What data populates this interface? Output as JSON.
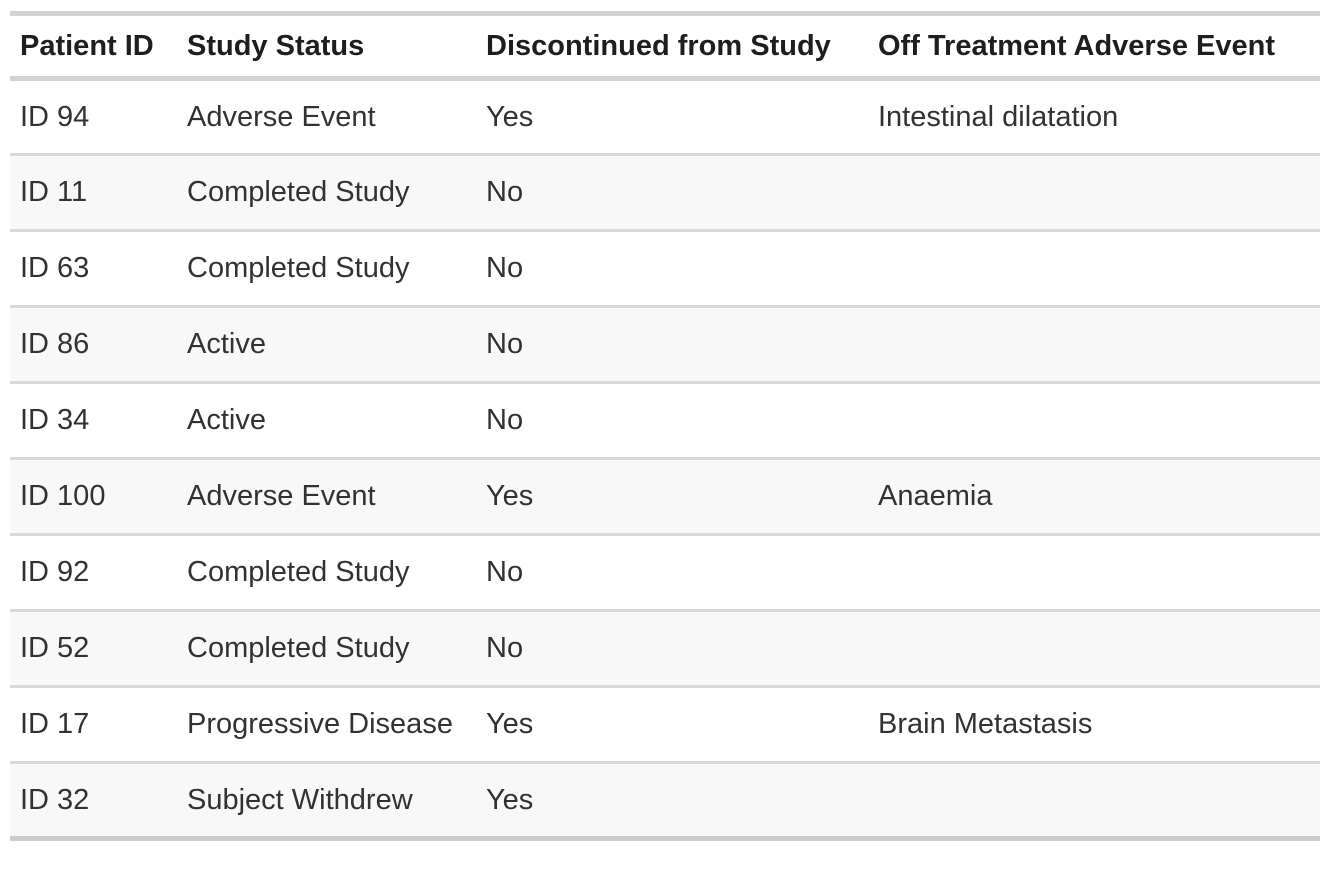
{
  "table": {
    "columns": [
      {
        "key": "patient_id",
        "label": "Patient ID"
      },
      {
        "key": "study_status",
        "label": "Study Status"
      },
      {
        "key": "discontinued",
        "label": "Discontinued from Study"
      },
      {
        "key": "adverse_event",
        "label": "Off Treatment Adverse Event"
      }
    ],
    "rows": [
      {
        "patient_id": "ID 94",
        "study_status": "Adverse Event",
        "discontinued": "Yes",
        "adverse_event": "Intestinal dilatation"
      },
      {
        "patient_id": "ID 11",
        "study_status": "Completed Study",
        "discontinued": "No",
        "adverse_event": ""
      },
      {
        "patient_id": "ID 63",
        "study_status": "Completed Study",
        "discontinued": "No",
        "adverse_event": ""
      },
      {
        "patient_id": "ID 86",
        "study_status": "Active",
        "discontinued": "No",
        "adverse_event": ""
      },
      {
        "patient_id": "ID 34",
        "study_status": "Active",
        "discontinued": "No",
        "adverse_event": ""
      },
      {
        "patient_id": "ID 100",
        "study_status": "Adverse Event",
        "discontinued": "Yes",
        "adverse_event": "Anaemia"
      },
      {
        "patient_id": "ID 92",
        "study_status": "Completed Study",
        "discontinued": "No",
        "adverse_event": ""
      },
      {
        "patient_id": "ID 52",
        "study_status": "Completed Study",
        "discontinued": "No",
        "adverse_event": ""
      },
      {
        "patient_id": "ID 17",
        "study_status": "Progressive Disease",
        "discontinued": "Yes",
        "adverse_event": "Brain Metastasis"
      },
      {
        "patient_id": "ID 32",
        "study_status": "Subject Withdrew",
        "discontinued": "Yes",
        "adverse_event": ""
      }
    ]
  },
  "chart_data": {
    "type": "table",
    "title": "",
    "columns": [
      "Patient ID",
      "Study Status",
      "Discontinued from Study",
      "Off Treatment Adverse Event"
    ],
    "rows": [
      [
        "ID 94",
        "Adverse Event",
        "Yes",
        "Intestinal dilatation"
      ],
      [
        "ID 11",
        "Completed Study",
        "No",
        ""
      ],
      [
        "ID 63",
        "Completed Study",
        "No",
        ""
      ],
      [
        "ID 86",
        "Active",
        "No",
        ""
      ],
      [
        "ID 34",
        "Active",
        "No",
        ""
      ],
      [
        "ID 100",
        "Adverse Event",
        "Yes",
        "Anaemia"
      ],
      [
        "ID 92",
        "Completed Study",
        "No",
        ""
      ],
      [
        "ID 52",
        "Completed Study",
        "No",
        ""
      ],
      [
        "ID 17",
        "Progressive Disease",
        "Yes",
        "Brain Metastasis"
      ],
      [
        "ID 32",
        "Subject Withdrew",
        "Yes",
        ""
      ]
    ],
    "layout": {
      "striped_rows": true,
      "stripe_color": "#f8f8f8",
      "row_separator_color": "#d8d8d8",
      "header_border_color": "#d2d2d2",
      "header_text_color": "#1f1e1d",
      "body_text_color": "#333231",
      "background": "#ffffff"
    }
  }
}
